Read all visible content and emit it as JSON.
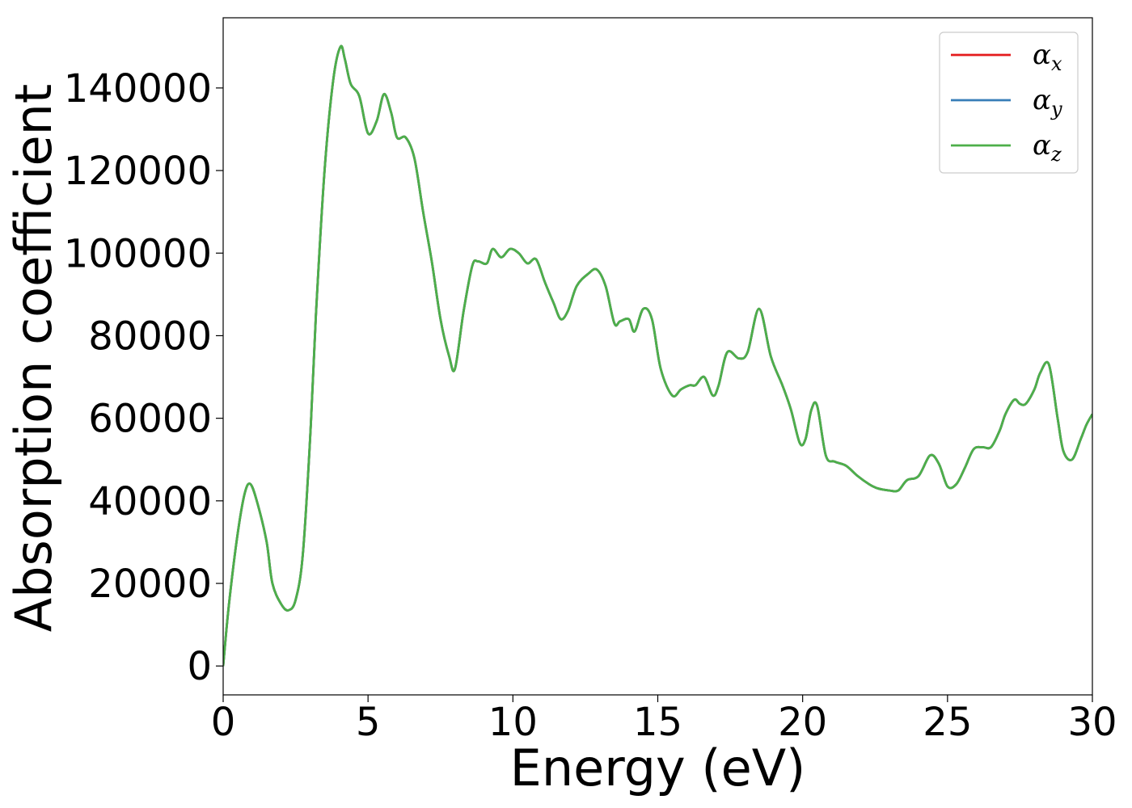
{
  "chart_data": {
    "type": "line",
    "xlabel": "Energy (eV)",
    "ylabel": "Absorption coefficient",
    "xlim": [
      0,
      30
    ],
    "ylim": [
      -7000,
      157000
    ],
    "xticks": [
      "0",
      "5",
      "10",
      "15",
      "20",
      "25",
      "30"
    ],
    "yticks": [
      "0",
      "20000",
      "40000",
      "60000",
      "80000",
      "100000",
      "120000",
      "140000"
    ],
    "grid": false,
    "legend_placement": "top-right",
    "x": [
      0,
      0.2,
      0.5,
      0.75,
      0.95,
      1.2,
      1.5,
      1.7,
      2.0,
      2.25,
      2.5,
      2.75,
      3.0,
      3.2,
      3.5,
      3.8,
      4.05,
      4.2,
      4.4,
      4.7,
      5.0,
      5.3,
      5.55,
      5.8,
      6.0,
      6.3,
      6.6,
      6.9,
      7.2,
      7.5,
      7.8,
      8.0,
      8.3,
      8.6,
      8.8,
      9.1,
      9.3,
      9.6,
      9.9,
      10.2,
      10.5,
      10.8,
      11.1,
      11.4,
      11.65,
      11.9,
      12.2,
      12.6,
      12.9,
      13.2,
      13.5,
      13.7,
      14.0,
      14.2,
      14.5,
      14.8,
      15.1,
      15.5,
      15.8,
      16.1,
      16.3,
      16.6,
      16.9,
      17.1,
      17.4,
      17.8,
      18.1,
      18.5,
      18.9,
      19.3,
      19.6,
      19.9,
      20.1,
      20.3,
      20.5,
      20.8,
      21.1,
      21.5,
      21.9,
      22.3,
      22.6,
      23.0,
      23.3,
      23.6,
      24.0,
      24.4,
      24.7,
      25.0,
      25.3,
      25.6,
      25.9,
      26.2,
      26.5,
      26.8,
      27.0,
      27.3,
      27.5,
      27.7,
      28.0,
      28.2,
      28.5,
      28.8,
      29.0,
      29.3,
      29.6,
      29.8,
      30.0
    ],
    "series": [
      {
        "name": "αx",
        "color": "#e41a1c",
        "values": [
          0,
          15000,
          32000,
          42000,
          44000,
          39000,
          30000,
          20000,
          15000,
          13500,
          16000,
          27000,
          55000,
          85000,
          120000,
          142000,
          150000,
          147000,
          141000,
          138000,
          129000,
          132000,
          138500,
          134000,
          128000,
          128000,
          123000,
          110000,
          98000,
          84000,
          75000,
          72000,
          86000,
          97000,
          98000,
          97500,
          101000,
          99000,
          101000,
          100000,
          97500,
          98500,
          93000,
          88000,
          84000,
          86000,
          92000,
          95000,
          96000,
          92000,
          83000,
          83500,
          84000,
          81000,
          86500,
          84000,
          72000,
          65500,
          67000,
          68000,
          68000,
          70000,
          65500,
          68000,
          76000,
          74500,
          76000,
          86500,
          75000,
          68000,
          62000,
          54000,
          55000,
          62000,
          63000,
          51000,
          49500,
          48500,
          46000,
          44000,
          43000,
          42500,
          42500,
          45000,
          46000,
          51000,
          49000,
          43500,
          44000,
          48000,
          52500,
          53000,
          53000,
          57000,
          61000,
          64500,
          63500,
          63500,
          67000,
          71000,
          73000,
          60000,
          52000,
          50000,
          55000,
          58500,
          61000
        ]
      },
      {
        "name": "αy",
        "color": "#377eb8",
        "values": [
          0,
          15000,
          32000,
          42000,
          44000,
          39000,
          30000,
          20000,
          15000,
          13500,
          16000,
          27000,
          55000,
          85000,
          120000,
          142000,
          150000,
          147000,
          141000,
          138000,
          129000,
          132000,
          138500,
          134000,
          128000,
          128000,
          123000,
          110000,
          98000,
          84000,
          75000,
          72000,
          86000,
          97000,
          98000,
          97500,
          101000,
          99000,
          101000,
          100000,
          97500,
          98500,
          93000,
          88000,
          84000,
          86000,
          92000,
          95000,
          96000,
          92000,
          83000,
          83500,
          84000,
          81000,
          86500,
          84000,
          72000,
          65500,
          67000,
          68000,
          68000,
          70000,
          65500,
          68000,
          76000,
          74500,
          76000,
          86500,
          75000,
          68000,
          62000,
          54000,
          55000,
          62000,
          63000,
          51000,
          49500,
          48500,
          46000,
          44000,
          43000,
          42500,
          42500,
          45000,
          46000,
          51000,
          49000,
          43500,
          44000,
          48000,
          52500,
          53000,
          53000,
          57000,
          61000,
          64500,
          63500,
          63500,
          67000,
          71000,
          73000,
          60000,
          52000,
          50000,
          55000,
          58500,
          61000
        ]
      },
      {
        "name": "αz",
        "color": "#4daf4a",
        "values": [
          0,
          15000,
          32000,
          42000,
          44000,
          39000,
          30000,
          20000,
          15000,
          13500,
          16000,
          27000,
          55000,
          85000,
          120000,
          142000,
          150000,
          147000,
          141000,
          138000,
          129000,
          132000,
          138500,
          134000,
          128000,
          128000,
          123000,
          110000,
          98000,
          84000,
          75000,
          72000,
          86000,
          97000,
          98000,
          97500,
          101000,
          99000,
          101000,
          100000,
          97500,
          98500,
          93000,
          88000,
          84000,
          86000,
          92000,
          95000,
          96000,
          92000,
          83000,
          83500,
          84000,
          81000,
          86500,
          84000,
          72000,
          65500,
          67000,
          68000,
          68000,
          70000,
          65500,
          68000,
          76000,
          74500,
          76000,
          86500,
          75000,
          68000,
          62000,
          54000,
          55000,
          62000,
          63000,
          51000,
          49500,
          48500,
          46000,
          44000,
          43000,
          42500,
          42500,
          45000,
          46000,
          51000,
          49000,
          43500,
          44000,
          48000,
          52500,
          53000,
          53000,
          57000,
          61000,
          64500,
          63500,
          63500,
          67000,
          71000,
          73000,
          60000,
          52000,
          50000,
          55000,
          58500,
          61000
        ]
      }
    ],
    "legend": [
      {
        "symbol": "α",
        "sub": "x",
        "color": "#e41a1c"
      },
      {
        "symbol": "α",
        "sub": "y",
        "color": "#377eb8"
      },
      {
        "symbol": "α",
        "sub": "z",
        "color": "#4daf4a"
      }
    ]
  }
}
